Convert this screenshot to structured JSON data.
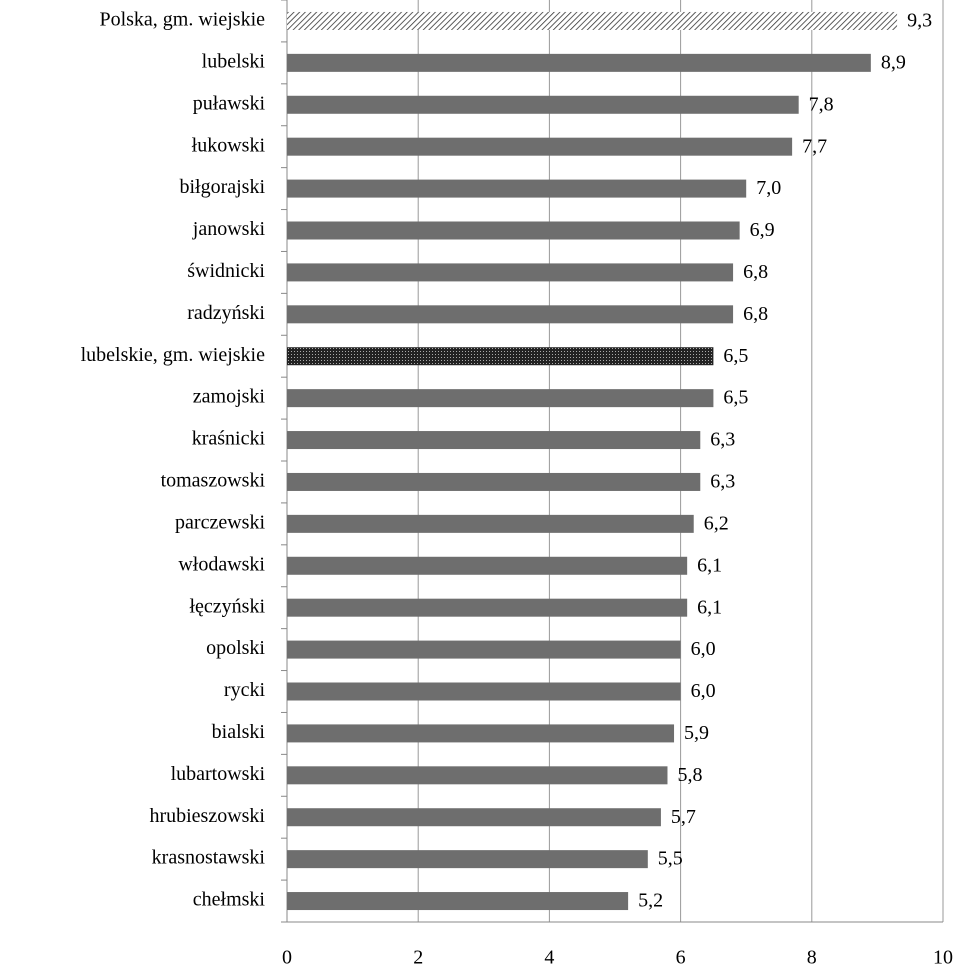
{
  "chart_data": {
    "type": "barh",
    "categories": [
      "Polska, gm. wiejskie",
      "lubelski",
      "puławski",
      "łukowski",
      "biłgorajski",
      "janowski",
      "świdnicki",
      "radzyński",
      "lubelskie, gm. wiejskie",
      "zamojski",
      "kraśnicki",
      "tomaszowski",
      "parczewski",
      "włodawski",
      "łęczyński",
      "opolski",
      "rycki",
      "bialski",
      "lubartowski",
      "hrubieszowski",
      "krasnostawski",
      "chełmski"
    ],
    "values": [
      9.3,
      8.9,
      7.8,
      7.7,
      7.0,
      6.9,
      6.8,
      6.8,
      6.5,
      6.5,
      6.3,
      6.3,
      6.2,
      6.1,
      6.1,
      6.0,
      6.0,
      5.9,
      5.8,
      5.7,
      5.5,
      5.2
    ],
    "value_labels": [
      "9,3",
      "8,9",
      "7,8",
      "7,7",
      "7,0",
      "6,9",
      "6,8",
      "6,8",
      "6,5",
      "6,5",
      "6,3",
      "6,3",
      "6,2",
      "6,1",
      "6,1",
      "6,0",
      "6,0",
      "5,9",
      "5,8",
      "5,7",
      "5,5",
      "5,2"
    ],
    "color": "#6e6e6e",
    "bar_styles": [
      "hatch",
      "solid",
      "solid",
      "solid",
      "solid",
      "solid",
      "solid",
      "solid",
      "dots",
      "solid",
      "solid",
      "solid",
      "solid",
      "solid",
      "solid",
      "solid",
      "solid",
      "solid",
      "solid",
      "solid",
      "solid",
      "solid"
    ],
    "xlim": [
      0,
      10
    ],
    "xticks": [
      0,
      2,
      4,
      6,
      8,
      10
    ],
    "grid": true
  }
}
